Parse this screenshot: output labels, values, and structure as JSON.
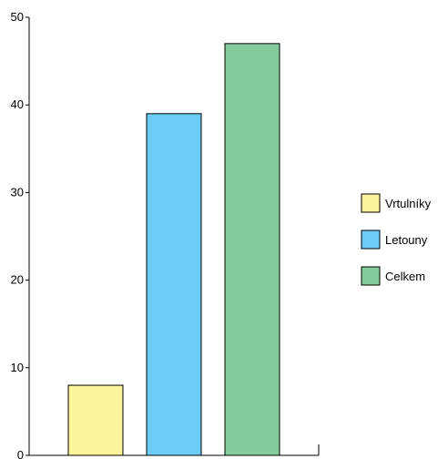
{
  "chart_data": {
    "type": "bar",
    "categories": [
      "Vrtulníky",
      "Letouny",
      "Celkem"
    ],
    "values": [
      8,
      39,
      47
    ],
    "colors": [
      "#fbf49a",
      "#6bcdf7",
      "#83cb9c"
    ],
    "ylim": [
      0,
      50
    ],
    "yticks": [
      0,
      10,
      20,
      30,
      40,
      50
    ],
    "ytick_labels": [
      "0",
      "10",
      "20",
      "30",
      "40",
      "50"
    ],
    "title": "",
    "xlabel": "",
    "ylabel": "",
    "grid": false,
    "legend": {
      "placement": "right",
      "entries": [
        "Vrtulníky",
        "Letouny",
        "Celkem"
      ]
    }
  }
}
